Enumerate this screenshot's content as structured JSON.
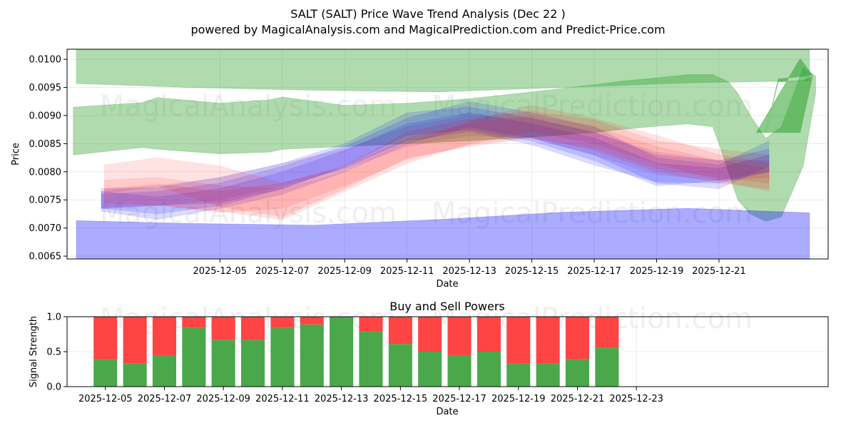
{
  "header": {
    "title_line1": "SALT (SALT) Price Wave Trend Analysis (Dec 22 )",
    "title_line2": "powered by MagicalAnalysis.com and MagicalPrediction.com and Predict-Price.com"
  },
  "watermarks": [
    "MagicalAnalysis.com",
    "MagicalPrediction.com"
  ],
  "colors": {
    "green_band": "#2ca02c",
    "blue_band": "#0000ff",
    "red_band": "#ff0000",
    "purple_band": "#800080",
    "buy_bar": "#4aa84a",
    "sell_bar": "#ff4444",
    "grid": "#e6e6e6"
  },
  "chart_data": [
    {
      "type": "area",
      "title": "",
      "xlabel": "Date",
      "ylabel": "Price",
      "xlim": [
        -1.9,
        22.5
      ],
      "ylim": [
        0.00645,
        0.01018
      ],
      "x_ticks": [
        {
          "pos": 3,
          "label": "2025-12-05"
        },
        {
          "pos": 5,
          "label": "2025-12-07"
        },
        {
          "pos": 7,
          "label": "2025-12-09"
        },
        {
          "pos": 9,
          "label": "2025-12-11"
        },
        {
          "pos": 11,
          "label": "2025-12-13"
        },
        {
          "pos": 13,
          "label": "2025-12-15"
        },
        {
          "pos": 15,
          "label": "2025-12-17"
        },
        {
          "pos": 17,
          "label": "2025-12-19"
        },
        {
          "pos": 19,
          "label": "2025-12-21"
        }
      ],
      "y_ticks": [
        {
          "value": 0.0065,
          "label": "0.0065"
        },
        {
          "value": 0.007,
          "label": "0.0070"
        },
        {
          "value": 0.0075,
          "label": "0.0075"
        },
        {
          "value": 0.008,
          "label": "0.0080"
        },
        {
          "value": 0.0085,
          "label": "0.0085"
        },
        {
          "value": 0.009,
          "label": "0.0090"
        },
        {
          "value": 0.0095,
          "label": "0.0095"
        },
        {
          "value": 0.01,
          "label": "0.0100"
        }
      ],
      "bands": [
        {
          "name": "green-top",
          "color": "#2ca02c",
          "opacity": 0.38,
          "x": [
            -1.6,
            2,
            6,
            10,
            14,
            18,
            21.9
          ],
          "upper": [
            0.01018,
            0.01018,
            0.01018,
            0.01018,
            0.01018,
            0.01018,
            0.01018
          ],
          "lower": [
            0.00957,
            0.0095,
            0.00945,
            0.00942,
            0.0095,
            0.00958,
            0.00962
          ]
        },
        {
          "name": "green-mid",
          "color": "#2ca02c",
          "opacity": 0.38,
          "x": [
            -1.7,
            0.5,
            1.0,
            3.0,
            4.6,
            5.0,
            7.0,
            9.0,
            11.0,
            13.0,
            15.0,
            16.0,
            17.0,
            18.0,
            18.8,
            19.0,
            19.3,
            19.6,
            20.0,
            20.5,
            21.0,
            21.7,
            22.1
          ],
          "upper": [
            0.00915,
            0.00923,
            0.00932,
            0.00922,
            0.00928,
            0.00933,
            0.00918,
            0.00922,
            0.0093,
            0.00942,
            0.00955,
            0.00962,
            0.00967,
            0.00973,
            0.00973,
            0.00968,
            0.0096,
            0.0094,
            0.009,
            0.0086,
            0.0088,
            0.00985,
            0.0097
          ],
          "lower": [
            0.0083,
            0.00843,
            0.0084,
            0.00832,
            0.00835,
            0.0084,
            0.00845,
            0.0085,
            0.00855,
            0.00862,
            0.0087,
            0.00876,
            0.00881,
            0.00885,
            0.0088,
            0.0085,
            0.008,
            0.0075,
            0.00725,
            0.00712,
            0.0072,
            0.0081,
            0.0094
          ]
        },
        {
          "name": "green-spike",
          "color": "#2ca02c",
          "opacity": 0.55,
          "x": [
            20.2,
            21.6,
            22.0,
            21.7,
            20.9,
            20.5
          ],
          "upper": [
            0.0087,
            0.01001,
            0.00972,
            0.0097,
            0.00965,
            0.0087
          ],
          "lower": [
            0.0087,
            0.0087,
            0.0097,
            0.00962,
            0.0096,
            0.0087
          ]
        },
        {
          "name": "blue-bottom",
          "color": "#0000ff",
          "opacity": 0.33,
          "x": [
            -1.6,
            2,
            6,
            10,
            14,
            18,
            21.9
          ],
          "upper": [
            0.00713,
            0.00708,
            0.00705,
            0.00715,
            0.00728,
            0.00735,
            0.00727
          ],
          "lower": [
            0.00645,
            0.00645,
            0.00645,
            0.00645,
            0.00645,
            0.00645,
            0.00645
          ]
        },
        {
          "name": "blue-wave-1",
          "color": "#0000ff",
          "opacity": 0.14,
          "x": [
            -0.8,
            1,
            3,
            5,
            7,
            9,
            11,
            13,
            15,
            17,
            19,
            20.6
          ],
          "upper": [
            0.0077,
            0.00772,
            0.0079,
            0.00815,
            0.0085,
            0.00905,
            0.00915,
            0.00895,
            0.0087,
            0.0083,
            0.0082,
            0.0084
          ],
          "lower": [
            0.00735,
            0.0074,
            0.00745,
            0.0077,
            0.0081,
            0.00865,
            0.00875,
            0.00855,
            0.0082,
            0.00775,
            0.00785,
            0.008
          ]
        },
        {
          "name": "blue-wave-2",
          "color": "#0000ff",
          "opacity": 0.14,
          "x": [
            -0.8,
            1,
            3,
            5,
            7,
            9,
            11,
            13,
            15,
            17,
            19,
            20.6
          ],
          "upper": [
            0.0076,
            0.00765,
            0.0078,
            0.0081,
            0.00845,
            0.00895,
            0.00925,
            0.00905,
            0.0088,
            0.00825,
            0.00812,
            0.00855
          ],
          "lower": [
            0.0073,
            0.00715,
            0.00735,
            0.0076,
            0.008,
            0.0085,
            0.0088,
            0.0086,
            0.0083,
            0.0078,
            0.0077,
            0.0081
          ]
        },
        {
          "name": "blue-wave-3",
          "color": "#0000ff",
          "opacity": 0.14,
          "x": [
            -0.8,
            1,
            3,
            5,
            7,
            9,
            11,
            13,
            15,
            17,
            19,
            20.6
          ],
          "upper": [
            0.00765,
            0.00755,
            0.0077,
            0.008,
            0.00838,
            0.00885,
            0.00905,
            0.00885,
            0.0086,
            0.00815,
            0.00806,
            0.0083
          ],
          "lower": [
            0.00735,
            0.00725,
            0.0074,
            0.0077,
            0.00808,
            0.00855,
            0.00872,
            0.00848,
            0.00812,
            0.00782,
            0.0078,
            0.008
          ]
        },
        {
          "name": "red-wave-1",
          "color": "#ff0000",
          "opacity": 0.11,
          "x": [
            -0.7,
            1,
            3,
            5,
            7,
            9,
            11,
            13,
            15,
            17,
            19,
            20.6
          ],
          "upper": [
            0.00812,
            0.00825,
            0.0081,
            0.0078,
            0.0081,
            0.0087,
            0.00895,
            0.00908,
            0.00892,
            0.00855,
            0.0084,
            0.0083
          ],
          "lower": [
            0.00762,
            0.00775,
            0.00738,
            0.0072,
            0.0077,
            0.00825,
            0.00845,
            0.0086,
            0.00842,
            0.00805,
            0.0079,
            0.0078
          ]
        },
        {
          "name": "red-wave-2",
          "color": "#ff0000",
          "opacity": 0.11,
          "x": [
            -0.7,
            1,
            3,
            5,
            7,
            9,
            11,
            13,
            15,
            17,
            19,
            20.6
          ],
          "upper": [
            0.00785,
            0.0079,
            0.00775,
            0.0077,
            0.008,
            0.0085,
            0.0089,
            0.00918,
            0.00895,
            0.00865,
            0.0083,
            0.00815
          ],
          "lower": [
            0.00745,
            0.0074,
            0.0073,
            0.00715,
            0.00765,
            0.00815,
            0.0085,
            0.00872,
            0.0085,
            0.00815,
            0.00785,
            0.00765
          ]
        },
        {
          "name": "red-wave-3",
          "color": "#ff0000",
          "opacity": 0.11,
          "x": [
            -0.7,
            1,
            3,
            5,
            7,
            9,
            11,
            13,
            15,
            17,
            19,
            20.6
          ],
          "upper": [
            0.0077,
            0.00778,
            0.00765,
            0.0078,
            0.00808,
            0.0086,
            0.00885,
            0.009,
            0.0088,
            0.00845,
            0.0082,
            0.00805
          ],
          "lower": [
            0.00738,
            0.00742,
            0.00728,
            0.00735,
            0.00775,
            0.00822,
            0.00848,
            0.00862,
            0.00838,
            0.008,
            0.0078,
            0.0077
          ]
        },
        {
          "name": "purple-wave",
          "color": "#800080",
          "opacity": 0.1,
          "x": [
            -0.8,
            1,
            3,
            5,
            7,
            9,
            11,
            13,
            15,
            17,
            19,
            20.6
          ],
          "upper": [
            0.00765,
            0.00775,
            0.0079,
            0.00815,
            0.0084,
            0.0088,
            0.009,
            0.00895,
            0.0087,
            0.00835,
            0.0082,
            0.0082
          ],
          "lower": [
            0.00735,
            0.0074,
            0.0075,
            0.00775,
            0.00805,
            0.00845,
            0.00865,
            0.0086,
            0.0083,
            0.00795,
            0.00785,
            0.0079
          ]
        }
      ]
    },
    {
      "type": "bar",
      "title": "Buy and Sell Powers",
      "xlabel": "Date",
      "ylabel": "Signal Strength",
      "xlim": [
        -1.3,
        24.5
      ],
      "ylim": [
        0,
        1.0
      ],
      "categories_pos": [
        0,
        1,
        2,
        3,
        4,
        5,
        6,
        7,
        8,
        9,
        10,
        11,
        12,
        13,
        14,
        15,
        16,
        17
      ],
      "series": [
        {
          "name": "Buy",
          "color": "#4aa84a",
          "values": [
            0.39,
            0.33,
            0.45,
            0.84,
            0.67,
            0.67,
            0.84,
            0.89,
            1.0,
            0.79,
            0.61,
            0.5,
            0.45,
            0.5,
            0.33,
            0.33,
            0.39,
            0.56
          ]
        },
        {
          "name": "Sell",
          "color": "#ff4444",
          "values": [
            0.61,
            0.67,
            0.55,
            0.16,
            0.33,
            0.33,
            0.16,
            0.11,
            0.0,
            0.21,
            0.39,
            0.5,
            0.55,
            0.5,
            0.67,
            0.67,
            0.61,
            0.44
          ]
        }
      ],
      "x_ticks": [
        {
          "pos": 0,
          "label": "2025-12-05"
        },
        {
          "pos": 2,
          "label": "2025-12-07"
        },
        {
          "pos": 4,
          "label": "2025-12-09"
        },
        {
          "pos": 6,
          "label": "2025-12-11"
        },
        {
          "pos": 8,
          "label": "2025-12-13"
        },
        {
          "pos": 10,
          "label": "2025-12-15"
        },
        {
          "pos": 12,
          "label": "2025-12-17"
        },
        {
          "pos": 14,
          "label": "2025-12-19"
        },
        {
          "pos": 16,
          "label": "2025-12-21"
        },
        {
          "pos": 18,
          "label": "2025-12-23"
        }
      ],
      "y_ticks": [
        {
          "value": 0.0,
          "label": "0.0"
        },
        {
          "value": 0.5,
          "label": "0.5"
        },
        {
          "value": 1.0,
          "label": "1.0"
        }
      ]
    }
  ]
}
